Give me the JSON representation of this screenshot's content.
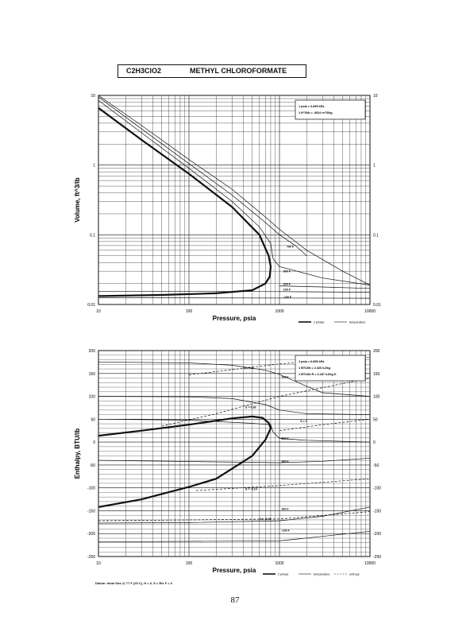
{
  "header": {
    "formula": "C2H3ClO2",
    "name": "METHYL CHLOROFORMATE"
  },
  "page_number": "87",
  "footnote": "Datum: Ideal Gas @ 77 F (25 C), H = 0, S = Ris F = 0",
  "chart_data": [
    {
      "type": "line",
      "xscale": "log",
      "yscale": "log",
      "xlim": [
        10,
        10000
      ],
      "ylim": [
        0.01,
        10
      ],
      "xticks": [
        "10",
        "100",
        "1000",
        "10000"
      ],
      "yticks": [
        "0.01",
        "0.1",
        "1",
        "10"
      ],
      "xlabel": "Pressure, psia",
      "ylabel": "Volume, ft^3/lb",
      "conversions": [
        "1 psia = 6.895 kPa",
        "1 ft^3/lb = .0624 m^3/kg"
      ],
      "legend": [
        "2 phase",
        "temperature"
      ],
      "series": [
        {
          "name": "2 phase",
          "style": "bold",
          "points": [
            [
              10,
              6.6
            ],
            [
              30,
              2.3
            ],
            [
              100,
              0.75
            ],
            [
              300,
              0.25
            ],
            [
              600,
              0.1
            ],
            [
              760,
              0.05
            ],
            [
              800,
              0.035
            ],
            [
              780,
              0.025
            ],
            [
              700,
              0.02
            ],
            [
              500,
              0.016
            ],
            [
              200,
              0.0145
            ],
            [
              50,
              0.0137
            ],
            [
              10,
              0.0132
            ]
          ]
        },
        {
          "name": "",
          "style": "thin",
          "points": [
            [
              10,
              10
            ],
            [
              30,
              3.7
            ],
            [
              100,
              1.2
            ],
            [
              300,
              0.45
            ],
            [
              700,
              0.18
            ],
            [
              1000,
              0.12
            ],
            [
              2000,
              0.06
            ],
            [
              5000,
              0.03
            ],
            [
              10000,
              0.019
            ]
          ]
        },
        {
          "name": "",
          "style": "thin",
          "points": [
            [
              10,
              9.5
            ],
            [
              30,
              3.3
            ],
            [
              100,
              1.05
            ],
            [
              300,
              0.37
            ],
            [
              700,
              0.15
            ],
            [
              1000,
              0.1
            ],
            [
              1500,
              0.07
            ],
            [
              2000,
              0.05
            ]
          ]
        },
        {
          "name": "500 F",
          "style": "thin",
          "points": [
            [
              10,
              8.5
            ],
            [
              30,
              2.9
            ],
            [
              100,
              0.9
            ],
            [
              300,
              0.3
            ],
            [
              600,
              0.13
            ],
            [
              800,
              0.075
            ],
            [
              850,
              0.045
            ],
            [
              1000,
              0.035
            ],
            [
              3000,
              0.024
            ],
            [
              10000,
              0.019
            ]
          ]
        },
        {
          "name": "300 F",
          "style": "thin",
          "points": [
            [
              1000,
              0.0185
            ],
            [
              3000,
              0.0178
            ],
            [
              10000,
              0.017
            ]
          ]
        },
        {
          "name": "100 F",
          "style": "thin",
          "points": [
            [
              10,
              0.0155
            ],
            [
              1000,
              0.0153
            ],
            [
              10000,
              0.015
            ]
          ]
        },
        {
          "name": "-100 F",
          "style": "thin",
          "points": [
            [
              10,
              0.0125
            ],
            [
              10000,
              0.0123
            ]
          ]
        }
      ],
      "labels": [
        {
          "text": "700 F",
          "x": 1200,
          "y": 0.065
        },
        {
          "text": "500 F",
          "x": 1100,
          "y": 0.029
        },
        {
          "text": "300 F",
          "x": 1100,
          "y": 0.019
        },
        {
          "text": "100 F",
          "x": 1100,
          "y": 0.0158
        },
        {
          "text": "-100 F",
          "x": 1100,
          "y": 0.0124
        }
      ]
    },
    {
      "type": "line",
      "xscale": "log",
      "yscale": "linear",
      "xlim": [
        10,
        10000
      ],
      "ylim": [
        -250,
        200
      ],
      "xticks": [
        "10",
        "100",
        "1000",
        "10000"
      ],
      "yticks": [
        "200",
        "150",
        "100",
        "50",
        "0",
        "-50",
        "-100",
        "-150",
        "-200",
        "-250"
      ],
      "xlabel": "Pressure, psia",
      "ylabel": "Enthalpy, BTU/lb",
      "conversions": [
        "1 psia = 6.895 kPa",
        "1 BTU/lb = 2.326 kJ/kg",
        "1 BTU/lb R = 4.187 kJ/kg K"
      ],
      "legend": [
        "2 phase",
        "temperature",
        "entropy"
      ],
      "series": [
        {
          "name": "2 phase",
          "style": "bold",
          "points": [
            [
              10,
              14
            ],
            [
              30,
              25
            ],
            [
              100,
              38
            ],
            [
              300,
              52
            ],
            [
              500,
              56
            ],
            [
              650,
              53
            ],
            [
              760,
              42
            ],
            [
              800,
              30
            ],
            [
              700,
              5
            ],
            [
              500,
              -30
            ],
            [
              200,
              -80
            ],
            [
              100,
              -98
            ],
            [
              30,
              -125
            ],
            [
              10,
              -142
            ]
          ]
        },
        {
          "name": "700 F",
          "style": "thin",
          "points": [
            [
              10,
              175
            ],
            [
              100,
              173
            ],
            [
              300,
              168
            ],
            [
              700,
              157
            ],
            [
              1000,
              148
            ],
            [
              2000,
              122
            ],
            [
              3000,
              108
            ],
            [
              10000,
              100
            ]
          ]
        },
        {
          "name": "",
          "style": "thin",
          "points": [
            [
              10,
              100
            ],
            [
              100,
              99
            ],
            [
              300,
              95
            ],
            [
              700,
              82
            ],
            [
              1000,
              70
            ],
            [
              2000,
              62
            ],
            [
              10000,
              60
            ]
          ]
        },
        {
          "name": "500 F",
          "style": "thin",
          "points": [
            [
              10,
              50
            ],
            [
              100,
              48
            ],
            [
              500,
              41
            ],
            [
              800,
              38
            ],
            [
              850,
              22
            ],
            [
              1000,
              8
            ],
            [
              2000,
              4
            ],
            [
              10000,
              0
            ]
          ]
        },
        {
          "name": "300 F",
          "style": "thin",
          "points": [
            [
              10,
              -40
            ],
            [
              1000,
              -45
            ],
            [
              3000,
              -42
            ],
            [
              10000,
              -35
            ]
          ]
        },
        {
          "name": "100 F",
          "style": "thin",
          "points": [
            [
              10,
              -177
            ],
            [
              100,
              -176
            ],
            [
              1000,
              -172
            ],
            [
              3000,
              -162
            ],
            [
              10000,
              -142
            ]
          ]
        },
        {
          "name": "-100 F",
          "style": "thin",
          "points": [
            [
              10,
              -218
            ],
            [
              1000,
              -216
            ],
            [
              10000,
              -195
            ]
          ]
        },
        {
          "name": "S = 0.11",
          "style": "dashed",
          "points": [
            [
              100,
              147
            ],
            [
              1000,
              171
            ],
            [
              10000,
              185
            ]
          ]
        },
        {
          "name": "S = 0.36",
          "style": "dashed",
          "points": [
            [
              50,
              35
            ],
            [
              200,
              62
            ],
            [
              1000,
              100
            ],
            [
              10000,
              140
            ]
          ]
        },
        {
          "name": "S = 0",
          "style": "dashed",
          "points": [
            [
              1000,
              25
            ],
            [
              3000,
              38
            ],
            [
              10000,
              50
            ]
          ]
        },
        {
          "name": "S = -0.14",
          "style": "dashed",
          "points": [
            [
              120,
              -106
            ],
            [
              1000,
              -95
            ],
            [
              10000,
              -80
            ]
          ]
        },
        {
          "name": "S = -0.38",
          "style": "dashed",
          "points": [
            [
              10,
              -172
            ],
            [
              1000,
              -168
            ],
            [
              10000,
              -152
            ]
          ]
        }
      ],
      "labels": [
        {
          "text": "S = 0.11",
          "x": 400,
          "y": 160
        },
        {
          "text": "700 F",
          "x": 1050,
          "y": 140
        },
        {
          "text": "S = 0.36",
          "x": 420,
          "y": 74
        },
        {
          "text": "S = 0",
          "x": 1700,
          "y": 44
        },
        {
          "text": "500 F",
          "x": 1050,
          "y": 5
        },
        {
          "text": "300 F",
          "x": 1050,
          "y": -44
        },
        {
          "text": "S = -0.14",
          "x": 420,
          "y": -105
        },
        {
          "text": "100 F",
          "x": 1050,
          "y": -148
        },
        {
          "text": "S = -0.38",
          "x": 600,
          "y": -170
        },
        {
          "text": "-100 F",
          "x": 1050,
          "y": -195
        }
      ]
    }
  ]
}
